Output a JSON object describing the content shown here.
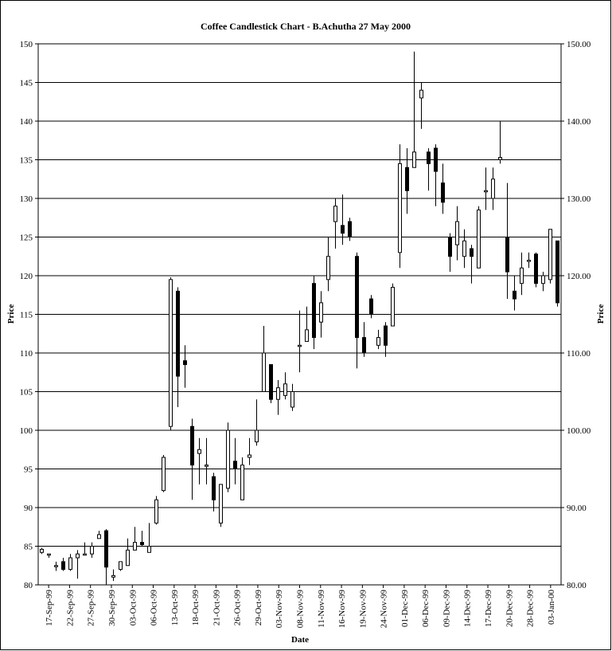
{
  "chart_data": {
    "type": "candlestick",
    "title": "Coffee Candlestick Chart - B.Achutha 27 May 2000",
    "xlabel": "Date",
    "ylabel_left": "Price",
    "ylabel_right": "Price",
    "ylim": [
      80,
      150
    ],
    "yticks_left": [
      "80",
      "85",
      "90",
      "95",
      "100",
      "105",
      "110",
      "115",
      "120",
      "125",
      "130",
      "135",
      "140",
      "145",
      "150"
    ],
    "yticks_right": [
      "80.00",
      "90.00",
      "100.00",
      "110.00",
      "120.00",
      "130.00",
      "140.00",
      "150.00"
    ],
    "yticks_right_values": [
      80,
      90,
      100,
      110,
      120,
      130,
      140,
      150
    ],
    "grid": true,
    "x_tick_labels": [
      "17-Sep-99",
      "22-Sep-99",
      "27-Sep-99",
      "30-Sep-99",
      "03-Oct-99",
      "06-Oct-99",
      "13-Oct-99",
      "18-Oct-99",
      "21-Oct-99",
      "26-Oct-99",
      "29-Oct-99",
      "03-Nov-99",
      "08-Nov-99",
      "11-Nov-99",
      "16-Nov-99",
      "19-Nov-99",
      "24-Nov-99",
      "01-Dec-99",
      "06-Dec-99",
      "09-Dec-99",
      "14-Dec-99",
      "17-Dec-99",
      "20-Dec-99",
      "28-Dec-99",
      "03-Jan-00"
    ],
    "candles": [
      {
        "o": 84.2,
        "h": 84.8,
        "l": 84.0,
        "c": 84.6
      },
      {
        "o": 84.0,
        "h": 84.0,
        "l": 83.5,
        "c": 84.0
      },
      {
        "o": 82.5,
        "h": 83.0,
        "l": 81.8,
        "c": 82.5
      },
      {
        "o": 83.0,
        "h": 83.5,
        "l": 81.8,
        "c": 82.0
      },
      {
        "o": 82.0,
        "h": 84.0,
        "l": 81.8,
        "c": 83.5
      },
      {
        "o": 83.5,
        "h": 84.5,
        "l": 80.8,
        "c": 84.0
      },
      {
        "o": 84.0,
        "h": 85.5,
        "l": 83.8,
        "c": 84.0
      },
      {
        "o": 84.0,
        "h": 85.5,
        "l": 83.5,
        "c": 85.0
      },
      {
        "o": 86.0,
        "h": 87.0,
        "l": 86.0,
        "c": 86.5
      },
      {
        "o": 87.0,
        "h": 87.2,
        "l": 80.0,
        "c": 82.3
      },
      {
        "o": 81.0,
        "h": 82.0,
        "l": 80.5,
        "c": 81.2
      },
      {
        "o": 82.0,
        "h": 83.0,
        "l": 81.8,
        "c": 83.0
      },
      {
        "o": 82.5,
        "h": 86.0,
        "l": 82.5,
        "c": 84.5
      },
      {
        "o": 84.5,
        "h": 87.5,
        "l": 84.5,
        "c": 85.5
      },
      {
        "o": 85.5,
        "h": 87.0,
        "l": 85.0,
        "c": 85.2
      },
      {
        "o": 84.2,
        "h": 88.0,
        "l": 84.2,
        "c": 85.0
      },
      {
        "o": 88.0,
        "h": 91.5,
        "l": 87.8,
        "c": 91.0
      },
      {
        "o": 92.2,
        "h": 96.8,
        "l": 92.0,
        "c": 96.5
      },
      {
        "o": 100.5,
        "h": 119.8,
        "l": 100.0,
        "c": 119.5
      },
      {
        "o": 118.0,
        "h": 118.5,
        "l": 103.0,
        "c": 107.0
      },
      {
        "o": 109.0,
        "h": 111.0,
        "l": 105.5,
        "c": 108.5
      },
      {
        "o": 100.5,
        "h": 101.5,
        "l": 91.0,
        "c": 95.5
      },
      {
        "o": 97.0,
        "h": 99.0,
        "l": 93.0,
        "c": 97.5
      },
      {
        "o": 95.5,
        "h": 99.0,
        "l": 93.0,
        "c": 95.5
      },
      {
        "o": 94.0,
        "h": 94.5,
        "l": 89.5,
        "c": 91.0
      },
      {
        "o": 88.0,
        "h": 93.0,
        "l": 87.5,
        "c": 93.0
      },
      {
        "o": 92.5,
        "h": 101.0,
        "l": 92.0,
        "c": 100.0
      },
      {
        "o": 96.0,
        "h": 99.0,
        "l": 93.0,
        "c": 95.0
      },
      {
        "o": 91.0,
        "h": 96.5,
        "l": 91.0,
        "c": 95.5
      },
      {
        "o": 96.5,
        "h": 99.0,
        "l": 95.5,
        "c": 96.8
      },
      {
        "o": 98.5,
        "h": 104.0,
        "l": 98.0,
        "c": 100.0
      },
      {
        "o": 105.0,
        "h": 113.5,
        "l": 105.0,
        "c": 110.0
      },
      {
        "o": 108.5,
        "h": 108.5,
        "l": 103.5,
        "c": 104.0
      },
      {
        "o": 104.0,
        "h": 106.5,
        "l": 102.0,
        "c": 105.5
      },
      {
        "o": 104.5,
        "h": 107.5,
        "l": 104.0,
        "c": 106.0
      },
      {
        "o": 103.0,
        "h": 106.0,
        "l": 102.5,
        "c": 105.0
      },
      {
        "o": 111.0,
        "h": 115.5,
        "l": 107.5,
        "c": 111.0
      },
      {
        "o": 111.5,
        "h": 116.0,
        "l": 111.5,
        "c": 113.0
      },
      {
        "o": 119.0,
        "h": 120.0,
        "l": 110.5,
        "c": 112.0
      },
      {
        "o": 114.0,
        "h": 118.0,
        "l": 112.0,
        "c": 116.5
      },
      {
        "o": 119.5,
        "h": 125.0,
        "l": 118.0,
        "c": 122.5
      },
      {
        "o": 127.0,
        "h": 130.0,
        "l": 123.5,
        "c": 129.0
      },
      {
        "o": 126.5,
        "h": 130.5,
        "l": 124.0,
        "c": 125.5
      },
      {
        "o": 127.0,
        "h": 127.5,
        "l": 124.5,
        "c": 125.0
      },
      {
        "o": 122.5,
        "h": 123.0,
        "l": 108.0,
        "c": 112.0
      },
      {
        "o": 112.0,
        "h": 114.0,
        "l": 109.5,
        "c": 110.0
      },
      {
        "o": 117.0,
        "h": 117.5,
        "l": 114.5,
        "c": 115.0
      },
      {
        "o": 111.0,
        "h": 113.0,
        "l": 110.5,
        "c": 112.0
      },
      {
        "o": 113.5,
        "h": 114.0,
        "l": 109.5,
        "c": 111.0
      },
      {
        "o": 113.5,
        "h": 119.0,
        "l": 113.5,
        "c": 118.5
      },
      {
        "o": 123.0,
        "h": 137.0,
        "l": 121.0,
        "c": 134.5
      },
      {
        "o": 134.0,
        "h": 136.5,
        "l": 128.0,
        "c": 131.0
      },
      {
        "o": 134.0,
        "h": 149.0,
        "l": 134.0,
        "c": 136.0
      },
      {
        "o": 143.0,
        "h": 145.0,
        "l": 139.0,
        "c": 144.0
      },
      {
        "o": 136.0,
        "h": 136.5,
        "l": 131.0,
        "c": 134.5
      },
      {
        "o": 136.5,
        "h": 137.0,
        "l": 129.0,
        "c": 133.5
      },
      {
        "o": 132.0,
        "h": 134.5,
        "l": 128.0,
        "c": 129.5
      },
      {
        "o": 125.0,
        "h": 125.5,
        "l": 120.5,
        "c": 122.5
      },
      {
        "o": 124.0,
        "h": 129.0,
        "l": 122.0,
        "c": 127.0
      },
      {
        "o": 122.5,
        "h": 126.0,
        "l": 121.0,
        "c": 124.5
      },
      {
        "o": 123.5,
        "h": 124.0,
        "l": 119.0,
        "c": 122.5
      },
      {
        "o": 121.0,
        "h": 129.0,
        "l": 121.0,
        "c": 128.5
      },
      {
        "o": 131.0,
        "h": 134.0,
        "l": 128.5,
        "c": 131.0
      },
      {
        "o": 130.0,
        "h": 134.0,
        "l": 128.5,
        "c": 132.5
      },
      {
        "o": 135.0,
        "h": 140.0,
        "l": 134.5,
        "c": 135.3
      },
      {
        "o": 125.0,
        "h": 132.0,
        "l": 117.0,
        "c": 120.5
      },
      {
        "o": 118.0,
        "h": 120.0,
        "l": 115.5,
        "c": 117.0
      },
      {
        "o": 119.0,
        "h": 123.0,
        "l": 117.5,
        "c": 121.0
      },
      {
        "o": 122.0,
        "h": 123.0,
        "l": 121.0,
        "c": 122.0
      },
      {
        "o": 122.8,
        "h": 123.0,
        "l": 118.5,
        "c": 119.0
      },
      {
        "o": 119.0,
        "h": 120.5,
        "l": 118.0,
        "c": 120.0
      },
      {
        "o": 119.5,
        "h": 126.0,
        "l": 119.0,
        "c": 126.0
      },
      {
        "o": 124.5,
        "h": 124.5,
        "l": 116.0,
        "c": 116.5
      }
    ]
  }
}
